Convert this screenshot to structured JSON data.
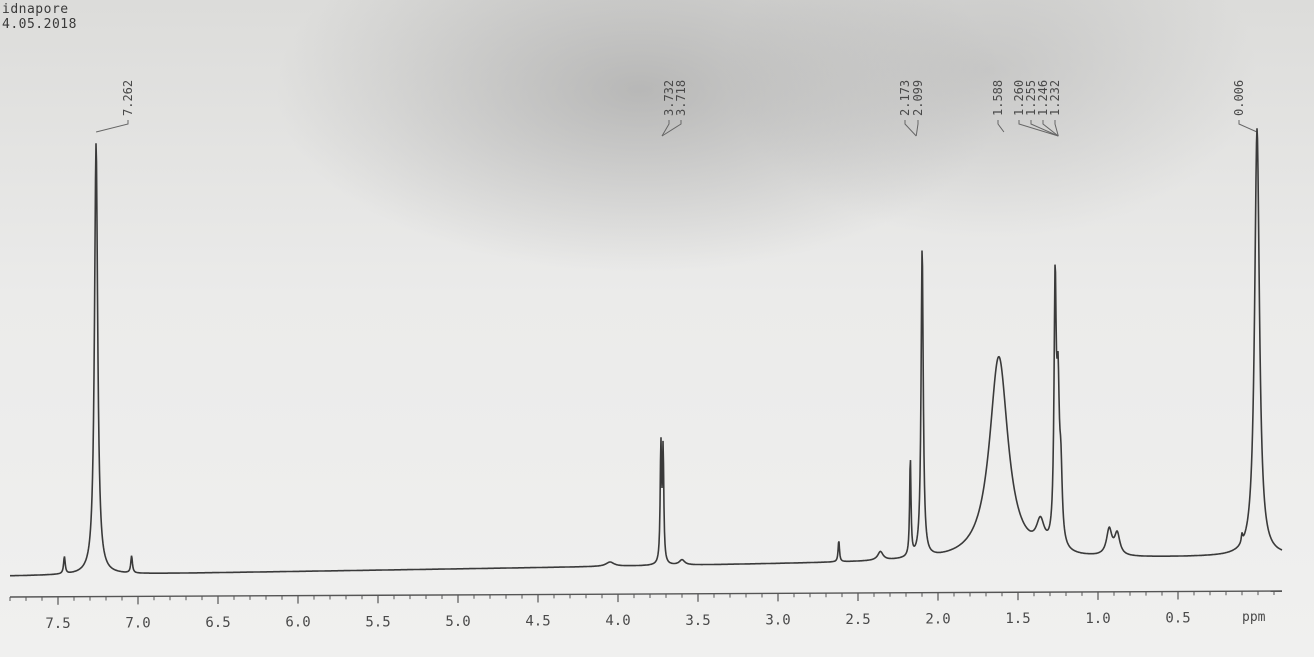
{
  "header": {
    "line1": "idnapore",
    "line2": "4.05.2018"
  },
  "colors": {
    "trace": "#3a3a3a",
    "axis": "#555555"
  },
  "chart_data": {
    "type": "line",
    "xlabel": "ppm",
    "xlim": [
      7.8,
      -0.15
    ],
    "x_reversed": true,
    "ticks": [
      "7.5",
      "7.0",
      "6.5",
      "6.0",
      "5.5",
      "5.0",
      "4.5",
      "4.0",
      "3.5",
      "3.0",
      "2.5",
      "2.0",
      "1.5",
      "1.0",
      "0.5"
    ],
    "tick_values": [
      7.5,
      7.0,
      6.5,
      6.0,
      5.5,
      5.0,
      4.5,
      4.0,
      3.5,
      3.0,
      2.5,
      2.0,
      1.5,
      1.0,
      0.5
    ],
    "grid": false,
    "peak_labels": [
      {
        "text": "7.262",
        "ppm": 7.262
      },
      {
        "text": "3.732",
        "ppm": 3.732
      },
      {
        "text": "3.718",
        "ppm": 3.718
      },
      {
        "text": "2.173",
        "ppm": 2.173
      },
      {
        "text": "2.099",
        "ppm": 2.099
      },
      {
        "text": "1.588",
        "ppm": 1.588
      },
      {
        "text": "1.260",
        "ppm": 1.26
      },
      {
        "text": "1.255",
        "ppm": 1.255
      },
      {
        "text": "1.246",
        "ppm": 1.246
      },
      {
        "text": "1.232",
        "ppm": 1.232
      },
      {
        "text": "0.006",
        "ppm": 0.006
      }
    ],
    "peaks": [
      {
        "ppm": 7.46,
        "height": 0.04,
        "width": 0.006
      },
      {
        "ppm": 7.262,
        "height": 1.0,
        "width": 0.012
      },
      {
        "ppm": 7.04,
        "height": 0.04,
        "width": 0.006
      },
      {
        "ppm": 4.05,
        "height": 0.01,
        "width": 0.03
      },
      {
        "ppm": 3.732,
        "height": 0.27,
        "width": 0.005
      },
      {
        "ppm": 3.718,
        "height": 0.26,
        "width": 0.005
      },
      {
        "ppm": 3.6,
        "height": 0.012,
        "width": 0.02
      },
      {
        "ppm": 2.62,
        "height": 0.05,
        "width": 0.005
      },
      {
        "ppm": 2.36,
        "height": 0.02,
        "width": 0.02
      },
      {
        "ppm": 2.173,
        "height": 0.23,
        "width": 0.005
      },
      {
        "ppm": 2.099,
        "height": 0.72,
        "width": 0.008
      },
      {
        "ppm": 1.62,
        "height": 0.47,
        "width": 0.07
      },
      {
        "ppm": 1.36,
        "height": 0.06,
        "width": 0.03
      },
      {
        "ppm": 1.268,
        "height": 0.58,
        "width": 0.008
      },
      {
        "ppm": 1.25,
        "height": 0.33,
        "width": 0.01
      },
      {
        "ppm": 1.232,
        "height": 0.15,
        "width": 0.01
      },
      {
        "ppm": 0.93,
        "height": 0.06,
        "width": 0.02
      },
      {
        "ppm": 0.88,
        "height": 0.05,
        "width": 0.02
      },
      {
        "ppm": 0.1,
        "height": 0.02,
        "width": 0.005
      },
      {
        "ppm": 0.006,
        "height": 0.99,
        "width": 0.018
      }
    ]
  }
}
